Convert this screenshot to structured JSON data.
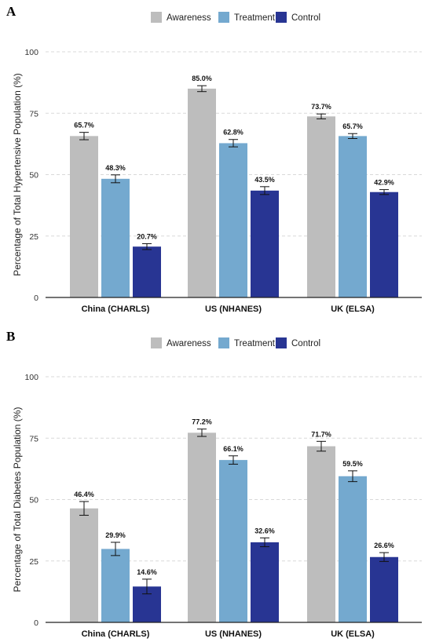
{
  "chart_data": [
    {
      "type": "bar",
      "panel_label": "A",
      "categories": [
        "China (CHARLS)",
        "US (NHANES)",
        "UK (ELSA)"
      ],
      "ylabel": "Percentage of Total Hypertensive Population (%)",
      "xlabel": "",
      "ylim": [
        0,
        100
      ],
      "yticks": [
        0,
        25,
        50,
        75,
        100
      ],
      "grid": "horizontal dashed",
      "legend_position": "top",
      "series": [
        {
          "name": "Awareness",
          "color": "#bdbdbd",
          "values": [
            65.7,
            85.0,
            73.7
          ],
          "err": [
            1.5,
            1.2,
            1.0
          ],
          "labels": [
            "65.7%",
            "85.0%",
            "73.7%"
          ]
        },
        {
          "name": "Treatment",
          "color": "#74a9cf",
          "values": [
            48.3,
            62.8,
            65.7
          ],
          "err": [
            1.6,
            1.5,
            1.0
          ],
          "labels": [
            "48.3%",
            "62.8%",
            "65.7%"
          ]
        },
        {
          "name": "Control",
          "color": "#283593",
          "values": [
            20.7,
            43.5,
            42.9
          ],
          "err": [
            1.2,
            1.6,
            1.0
          ],
          "labels": [
            "20.7%",
            "43.5%",
            "42.9%"
          ]
        }
      ]
    },
    {
      "type": "bar",
      "panel_label": "B",
      "categories": [
        "China (CHARLS)",
        "US (NHANES)",
        "UK (ELSA)"
      ],
      "ylabel": "Percentage of Total Diabetes Population (%)",
      "xlabel": "",
      "ylim": [
        0,
        100
      ],
      "yticks": [
        0,
        25,
        50,
        75,
        100
      ],
      "grid": "horizontal dashed",
      "legend_position": "top",
      "series": [
        {
          "name": "Awareness",
          "color": "#bdbdbd",
          "values": [
            46.4,
            77.2,
            71.7
          ],
          "err": [
            2.8,
            1.5,
            2.0
          ],
          "labels": [
            "46.4%",
            "77.2%",
            "71.7%"
          ]
        },
        {
          "name": "Treatment",
          "color": "#74a9cf",
          "values": [
            29.9,
            66.1,
            59.5
          ],
          "err": [
            2.7,
            1.7,
            2.2
          ],
          "labels": [
            "29.9%",
            "66.1%",
            "59.5%"
          ]
        },
        {
          "name": "Control",
          "color": "#283593",
          "values": [
            14.6,
            32.6,
            26.6
          ],
          "err": [
            3.0,
            1.8,
            1.8
          ],
          "labels": [
            "14.6%",
            "32.6%",
            "26.6%"
          ]
        }
      ]
    }
  ]
}
